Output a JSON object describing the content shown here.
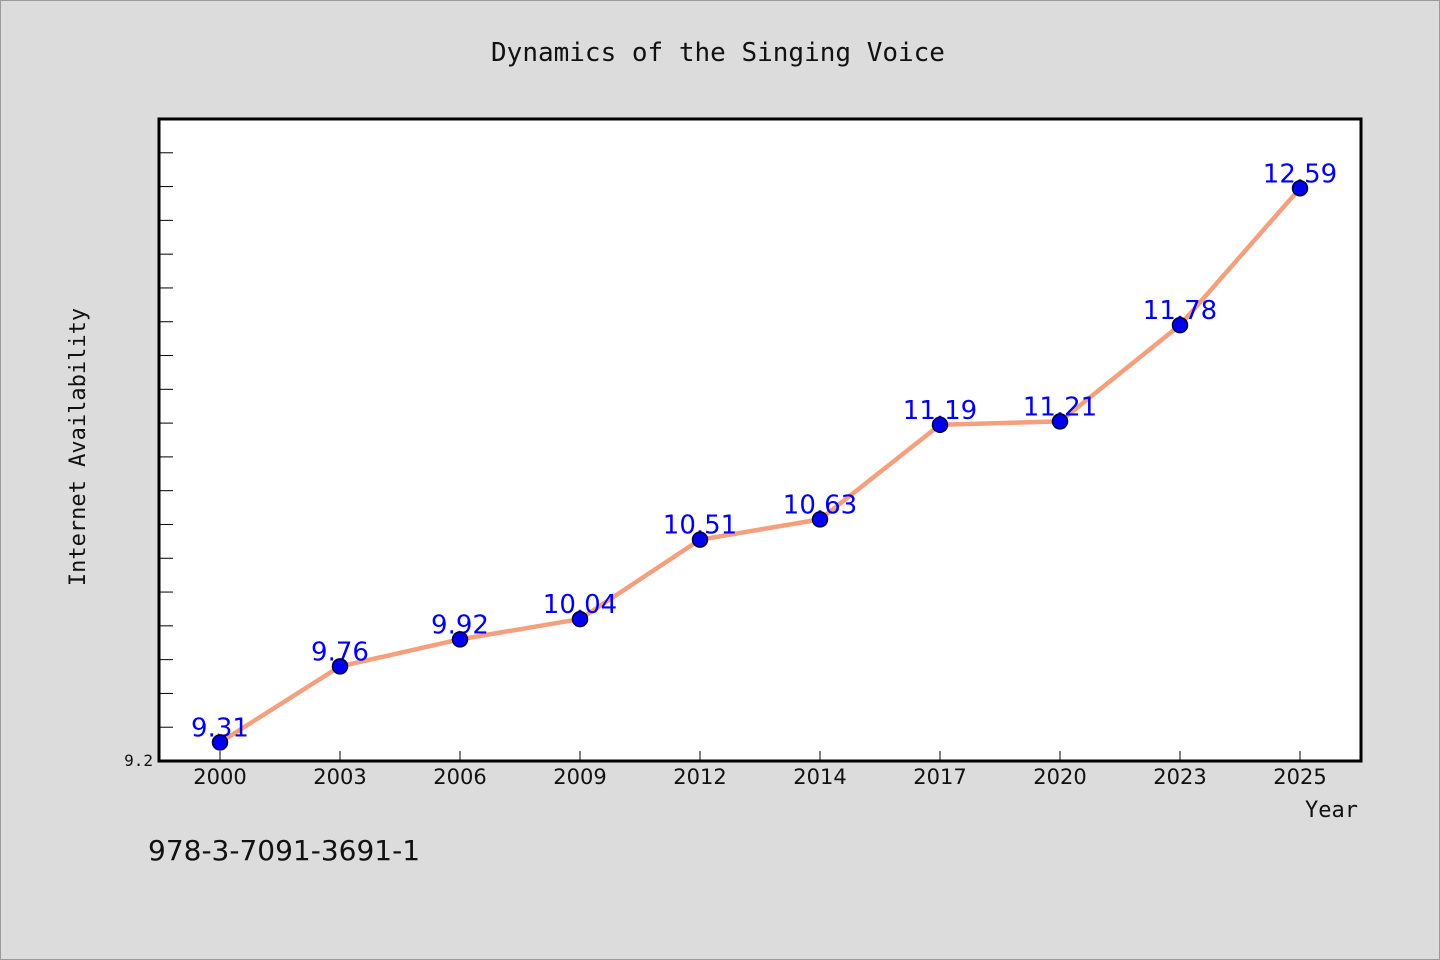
{
  "chart_data": {
    "type": "line",
    "title": "Dynamics of the Singing Voice",
    "xlabel": "Year",
    "ylabel": "Internet Availability",
    "categories": [
      "2000",
      "2003",
      "2006",
      "2009",
      "2012",
      "2014",
      "2017",
      "2020",
      "2023",
      "2025"
    ],
    "values": [
      9.31,
      9.76,
      9.92,
      10.04,
      10.51,
      10.63,
      11.19,
      11.21,
      11.78,
      12.59
    ],
    "ylim": [
      9.2,
      13.0
    ],
    "y_tick_labels": [
      "9.2"
    ],
    "grid": false,
    "legend": "none",
    "colors": {
      "line": "#f4a07e",
      "marker": "#0000ee",
      "marker_edge": "#000033",
      "data_label": "#0000ee",
      "background": "#dcdcdc",
      "plot_background": "#ffffff"
    }
  },
  "footer": {
    "isbn": "978-3-7091-3691-1"
  }
}
